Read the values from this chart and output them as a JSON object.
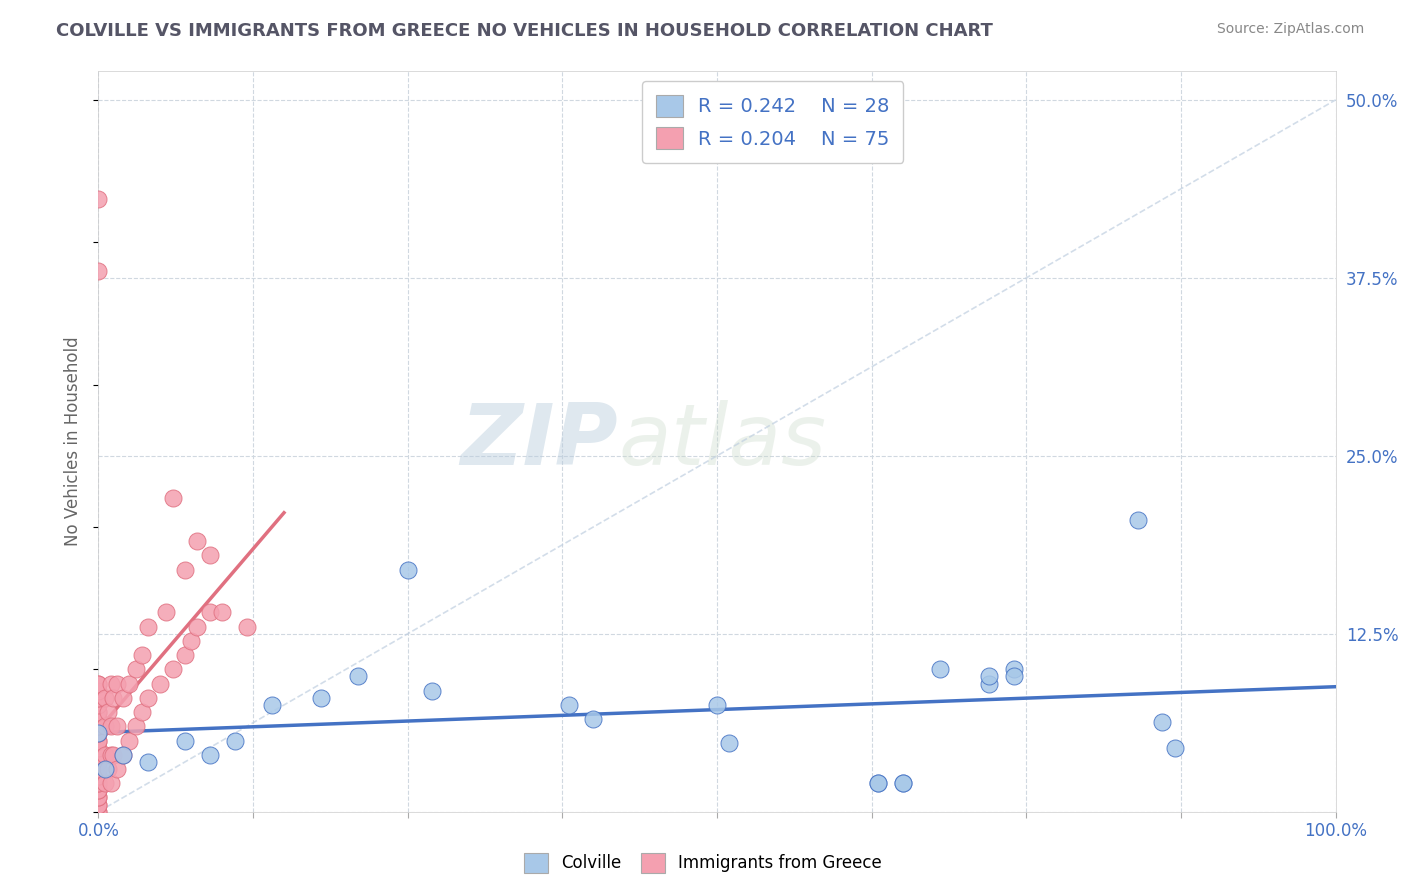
{
  "title": "COLVILLE VS IMMIGRANTS FROM GREECE NO VEHICLES IN HOUSEHOLD CORRELATION CHART",
  "source": "Source: ZipAtlas.com",
  "ylabel": "No Vehicles in Household",
  "watermark_zip": "ZIP",
  "watermark_atlas": "atlas",
  "legend_colville": "Colville",
  "legend_immigrants": "Immigrants from Greece",
  "R_colville": 0.242,
  "N_colville": 28,
  "R_immigrants": 0.204,
  "N_immigrants": 75,
  "xlim": [
    0.0,
    1.0
  ],
  "ylim": [
    0.0,
    0.52
  ],
  "xticks": [
    0.0,
    0.125,
    0.25,
    0.375,
    0.5,
    0.625,
    0.75,
    0.875,
    1.0
  ],
  "xtick_labels": [
    "0.0%",
    "",
    "",
    "",
    "",
    "",
    "",
    "",
    "100.0%"
  ],
  "yticks": [
    0.0,
    0.125,
    0.25,
    0.375,
    0.5
  ],
  "ytick_labels": [
    "",
    "12.5%",
    "25.0%",
    "37.5%",
    "50.0%"
  ],
  "colville_x": [
    0.0,
    0.005,
    0.02,
    0.04,
    0.07,
    0.09,
    0.11,
    0.14,
    0.18,
    0.21,
    0.25,
    0.27,
    0.38,
    0.4,
    0.5,
    0.51,
    0.63,
    0.65,
    0.68,
    0.72,
    0.74,
    0.84,
    0.86,
    0.87,
    0.63,
    0.65,
    0.72,
    0.74
  ],
  "colville_y": [
    0.055,
    0.03,
    0.04,
    0.035,
    0.05,
    0.04,
    0.05,
    0.075,
    0.08,
    0.095,
    0.17,
    0.085,
    0.075,
    0.065,
    0.075,
    0.048,
    0.02,
    0.02,
    0.1,
    0.09,
    0.1,
    0.205,
    0.063,
    0.045,
    0.02,
    0.02,
    0.095,
    0.095
  ],
  "immigrants_x": [
    0.0,
    0.0,
    0.0,
    0.0,
    0.0,
    0.0,
    0.0,
    0.0,
    0.0,
    0.0,
    0.0,
    0.0,
    0.0,
    0.0,
    0.0,
    0.0,
    0.0,
    0.0,
    0.0,
    0.0,
    0.0,
    0.0,
    0.0,
    0.0,
    0.0,
    0.0,
    0.0,
    0.0,
    0.0,
    0.0,
    0.0,
    0.0,
    0.0,
    0.0,
    0.0,
    0.0,
    0.0,
    0.005,
    0.005,
    0.005,
    0.005,
    0.008,
    0.008,
    0.01,
    0.01,
    0.01,
    0.01,
    0.012,
    0.012,
    0.015,
    0.015,
    0.015,
    0.02,
    0.02,
    0.025,
    0.025,
    0.03,
    0.03,
    0.035,
    0.035,
    0.04,
    0.04,
    0.05,
    0.055,
    0.06,
    0.06,
    0.07,
    0.07,
    0.075,
    0.08,
    0.08,
    0.09,
    0.09,
    0.1,
    0.12
  ],
  "immigrants_y": [
    0.0,
    0.0,
    0.005,
    0.005,
    0.01,
    0.01,
    0.015,
    0.015,
    0.02,
    0.02,
    0.025,
    0.025,
    0.03,
    0.03,
    0.035,
    0.035,
    0.04,
    0.04,
    0.045,
    0.05,
    0.05,
    0.055,
    0.055,
    0.06,
    0.06,
    0.065,
    0.065,
    0.07,
    0.07,
    0.075,
    0.08,
    0.08,
    0.085,
    0.09,
    0.09,
    0.43,
    0.38,
    0.02,
    0.04,
    0.06,
    0.08,
    0.03,
    0.07,
    0.02,
    0.04,
    0.06,
    0.09,
    0.04,
    0.08,
    0.03,
    0.06,
    0.09,
    0.04,
    0.08,
    0.05,
    0.09,
    0.06,
    0.1,
    0.07,
    0.11,
    0.08,
    0.13,
    0.09,
    0.14,
    0.1,
    0.22,
    0.11,
    0.17,
    0.12,
    0.13,
    0.19,
    0.14,
    0.18,
    0.14,
    0.13
  ],
  "colville_color": "#a8c8e8",
  "immigrants_color": "#f4a0b0",
  "colville_line_color": "#4472c4",
  "immigrants_line_color": "#e07080",
  "diag_line_color": "#c0cfe0",
  "background_color": "#ffffff",
  "grid_color": "#d0d8e0"
}
